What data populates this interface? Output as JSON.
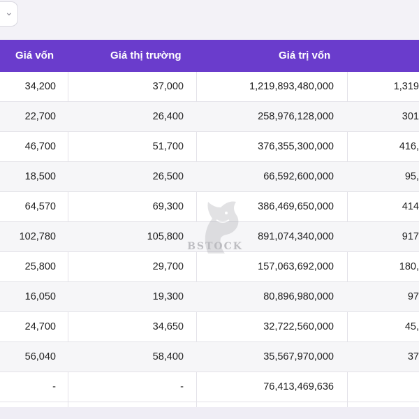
{
  "header": {
    "dropdown_icon": "chevron-down-icon"
  },
  "table": {
    "columns": [
      "Giá vốn",
      "Giá thị trường",
      "Giá trị vốn",
      ""
    ],
    "rows": [
      {
        "gia_von": "34,200",
        "gia_thi_truong": "37,000",
        "gia_tri_von": "1,219,893,480,000",
        "col4": "1,319"
      },
      {
        "gia_von": "22,700",
        "gia_thi_truong": "26,400",
        "gia_tri_von": "258,976,128,000",
        "col4": "301"
      },
      {
        "gia_von": "46,700",
        "gia_thi_truong": "51,700",
        "gia_tri_von": "376,355,300,000",
        "col4": "416,"
      },
      {
        "gia_von": "18,500",
        "gia_thi_truong": "26,500",
        "gia_tri_von": "66,592,600,000",
        "col4": "95,"
      },
      {
        "gia_von": "64,570",
        "gia_thi_truong": "69,300",
        "gia_tri_von": "386,469,650,000",
        "col4": "414"
      },
      {
        "gia_von": "102,780",
        "gia_thi_truong": "105,800",
        "gia_tri_von": "891,074,340,000",
        "col4": "917"
      },
      {
        "gia_von": "25,800",
        "gia_thi_truong": "29,700",
        "gia_tri_von": "157,063,692,000",
        "col4": "180,"
      },
      {
        "gia_von": "16,050",
        "gia_thi_truong": "19,300",
        "gia_tri_von": "80,896,980,000",
        "col4": "97"
      },
      {
        "gia_von": "24,700",
        "gia_thi_truong": "34,650",
        "gia_tri_von": "32,722,560,000",
        "col4": "45,"
      },
      {
        "gia_von": "56,040",
        "gia_thi_truong": "58,400",
        "gia_tri_von": "35,567,970,000",
        "col4": "37"
      },
      {
        "gia_von": "-",
        "gia_thi_truong": "-",
        "gia_tri_von": "76,413,469,636",
        "col4": ""
      }
    ]
  },
  "watermark": {
    "text": "BSTOCK"
  },
  "colors": {
    "header_bg": "#6a3ccc",
    "row_alt_bg": "#f6f6f8",
    "page_bg": "#f3f2f7"
  }
}
